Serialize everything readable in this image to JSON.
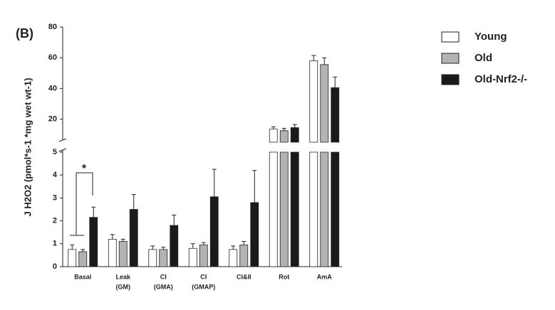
{
  "chart_data": {
    "type": "bar",
    "panel_label": "(B)",
    "y_label": "J H2O2 (pmol*s-1 *mg wet wt-1)",
    "categories": [
      [
        "Basal"
      ],
      [
        "Leak",
        "(GM)"
      ],
      [
        "CI",
        "(GMA)"
      ],
      [
        "CI",
        "(GMAP)"
      ],
      [
        "CI&II"
      ],
      [
        "Rot"
      ],
      [
        "AmA"
      ]
    ],
    "segments": [
      {
        "ylim": [
          0,
          5
        ],
        "yticks": [
          0,
          1,
          2,
          3,
          4,
          5
        ]
      },
      {
        "ylim": [
          5,
          80
        ],
        "yticks": [
          20,
          40,
          60,
          80
        ]
      }
    ],
    "series": [
      {
        "name": "Young",
        "color": "#ffffff",
        "values": [
          0.75,
          1.2,
          0.75,
          0.8,
          0.75,
          13.5,
          58
        ],
        "errors": [
          0.2,
          0.2,
          0.15,
          0.2,
          0.15,
          1.5,
          3.5
        ]
      },
      {
        "name": "Old",
        "color": "#b3b3b3",
        "values": [
          0.65,
          1.1,
          0.75,
          0.95,
          0.95,
          12.5,
          55.5
        ],
        "errors": [
          0.1,
          0.1,
          0.1,
          0.1,
          0.15,
          1.5,
          4.5
        ]
      },
      {
        "name": "Old-Nrf2-/-",
        "color": "#1a1a1a",
        "values": [
          2.15,
          2.5,
          1.8,
          3.05,
          2.8,
          14.5,
          40.5
        ],
        "errors": [
          0.45,
          0.65,
          0.45,
          1.2,
          1.4,
          2,
          7
        ]
      }
    ],
    "annotation": "*"
  }
}
